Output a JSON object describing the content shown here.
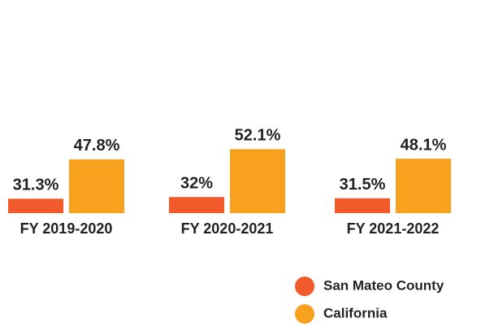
{
  "chart_data": {
    "type": "bar",
    "categories": [
      "FY 2019-2020",
      "FY 2020-2021",
      "FY 2021-2022"
    ],
    "series": [
      {
        "name": "San Mateo County",
        "color": "#f15a2b",
        "values": [
          31.3,
          32,
          31.5
        ],
        "value_labels": [
          "31.3%",
          "32%",
          "31.5%"
        ]
      },
      {
        "name": "California",
        "color": "#f7a11f",
        "values": [
          47.8,
          52.1,
          48.1
        ],
        "value_labels": [
          "47.8%",
          "52.1%",
          "48.1%"
        ]
      }
    ]
  }
}
